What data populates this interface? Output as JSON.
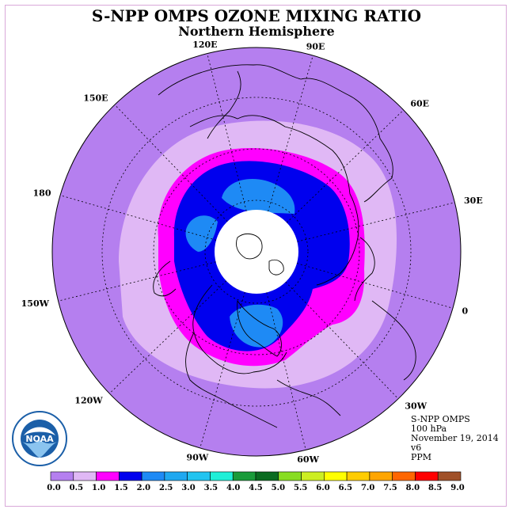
{
  "header": {
    "title": "S-NPP OMPS OZONE MIXING RATIO",
    "subtitle": "Northern Hemisphere"
  },
  "map": {
    "projection": "north-polar-stereographic",
    "longitude_labels": [
      "90E",
      "60E",
      "30E",
      "0",
      "30W",
      "60W",
      "90W",
      "120W",
      "150W",
      "180",
      "150E",
      "120E"
    ],
    "fill_colors": {
      "outer": "#b57fef",
      "light": "#e0b8f5",
      "magenta": "#ff00ff",
      "blue": "#0000ee",
      "medium_blue": "#1e8af5",
      "land_lines": "#000000",
      "polar_gap": "#ffffff"
    }
  },
  "info": {
    "instrument": "S-NPP OMPS",
    "level": "100 hPa",
    "date": "November 19, 2014",
    "version": "v6",
    "units": "PPM"
  },
  "logo": {
    "name": "noaa-logo",
    "text": "NOAA"
  },
  "legend": {
    "ticks": [
      "0.0",
      "0.5",
      "1.0",
      "1.5",
      "2.0",
      "2.5",
      "3.0",
      "3.5",
      "4.0",
      "4.5",
      "5.0",
      "5.5",
      "6.0",
      "6.5",
      "7.0",
      "7.5",
      "8.0",
      "8.5",
      "9.0"
    ],
    "colors": [
      "#b57fef",
      "#e0b8f5",
      "#ff00ff",
      "#0000ee",
      "#1e8af5",
      "#1fa8f0",
      "#22c4f0",
      "#20f0d8",
      "#1a9b3a",
      "#0a6b20",
      "#88dd22",
      "#ccee22",
      "#ffff00",
      "#ffcc00",
      "#ffa500",
      "#ff6600",
      "#ff0000",
      "#a05028"
    ]
  }
}
